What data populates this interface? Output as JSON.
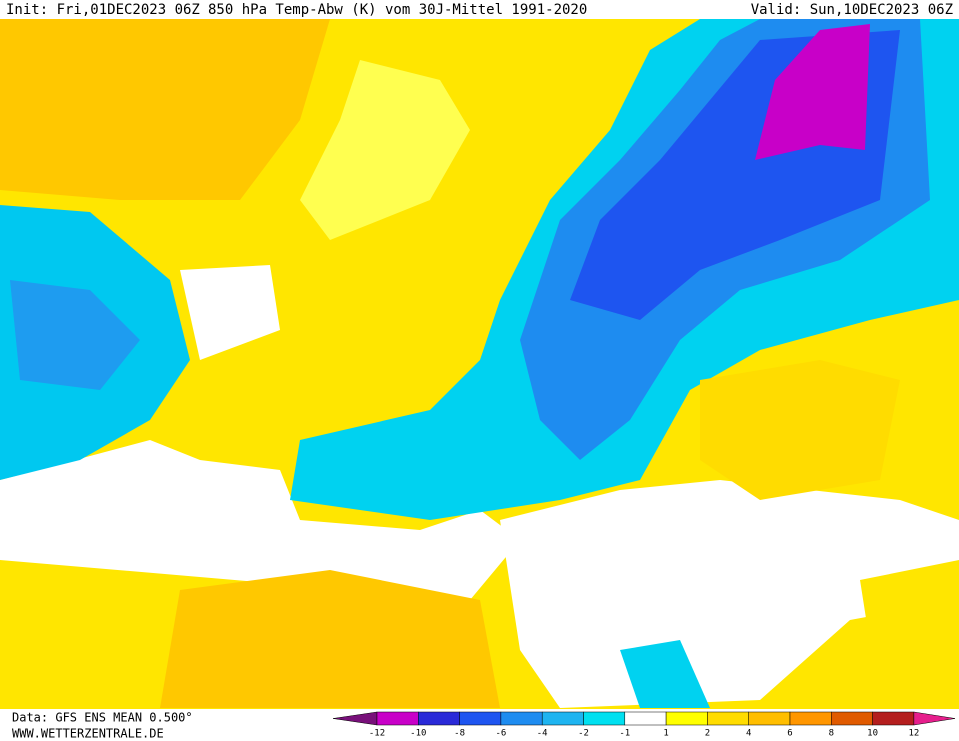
{
  "header": {
    "init": "Init: Fri,01DEC2023 06Z",
    "title": "850 hPa Temp-Abw (K) vom 30J-Mittel 1991-2020",
    "valid": "Valid: Sun,10DEC2023 06Z"
  },
  "footer": {
    "data": "Data: GFS ENS MEAN 0.500°",
    "site": "WWW.WETTERZENTRALE.DE"
  },
  "colorbar": {
    "ticks": [
      -12,
      -10,
      -8,
      -6,
      -4,
      -2,
      -1,
      1,
      2,
      4,
      6,
      8,
      10,
      12
    ],
    "colors": [
      "#78107a",
      "#c800c8",
      "#2a2ad8",
      "#1e55f0",
      "#1e8cf0",
      "#1eb4f0",
      "#00e0f0",
      "#ffffff",
      "#ffff00",
      "#ffdc00",
      "#ffbe00",
      "#ff9600",
      "#e05a00",
      "#b41e1e",
      "#e61e8c"
    ]
  }
}
